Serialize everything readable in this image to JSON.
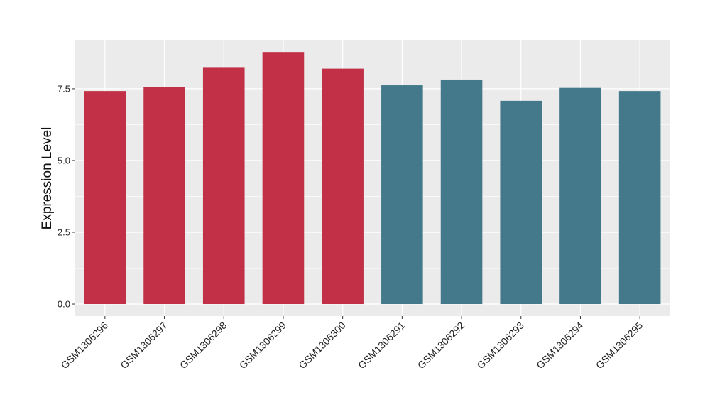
{
  "chart_data": {
    "type": "bar",
    "title": "",
    "xlabel": "",
    "ylabel": "Expression Level",
    "categories": [
      "GSM1306296",
      "GSM1306297",
      "GSM1306298",
      "GSM1306299",
      "GSM1306300",
      "GSM1306291",
      "GSM1306292",
      "GSM1306293",
      "GSM1306294",
      "GSM1306295"
    ],
    "values": [
      7.42,
      7.57,
      8.23,
      8.78,
      8.2,
      7.62,
      7.82,
      7.08,
      7.53,
      7.42
    ],
    "bar_colors": [
      "#c23047",
      "#c23047",
      "#c23047",
      "#c23047",
      "#c23047",
      "#43798a",
      "#43798a",
      "#43798a",
      "#43798a",
      "#43798a"
    ],
    "ylim": [
      -0.42,
      9.18
    ],
    "yticks": [
      0,
      2.5,
      5,
      7.5
    ],
    "ytick_labels": [
      "0.0",
      "2.5",
      "5.0",
      "7.5"
    ],
    "grid": true,
    "legend": "none",
    "panel_background": "#ebebeb",
    "grid_color": "#ffffff"
  }
}
